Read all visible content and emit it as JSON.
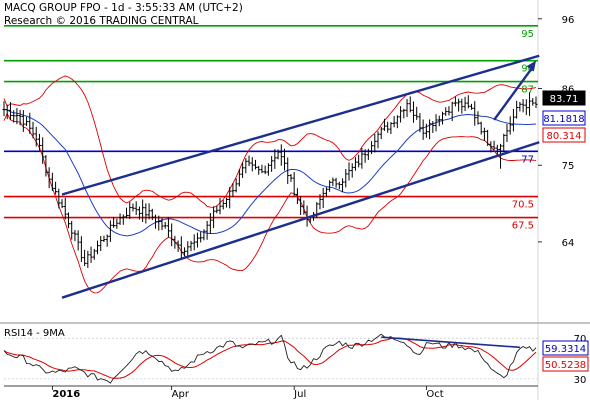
{
  "header": {
    "line1": "MACQ GROUP FPO - 1d - 3:55:33 AM (UTC+2)",
    "line2": "Research © 2016 TRADING CENTRAL"
  },
  "colors": {
    "price": "#000000",
    "channel": "#1c2f8c",
    "support_resistance_blue": "#0000cc",
    "target_green": "#00a000",
    "support_red": "#dd0000",
    "bollinger": "#dd0000",
    "moving_average": "#1c3cc8",
    "rsi": "#222222",
    "rsi_ma": "#dd0000",
    "box_black": "#000000",
    "box_blue": "#0000cc",
    "box_red": "#dd0000"
  },
  "chart_data": [
    {
      "type": "candlestick",
      "title": "MACQ GROUP FPO - 1d",
      "y_ticks": [
        "96",
        "86",
        "75",
        "64"
      ],
      "x_ticks": [
        "2016",
        "Apr",
        "Jul",
        "Oct"
      ],
      "ylim": [
        52.8,
        98.7
      ],
      "levels": [
        {
          "value": 95,
          "label": "95",
          "color": "#00a000"
        },
        {
          "value": 90,
          "label": "90",
          "color": "#00a000"
        },
        {
          "value": 87,
          "label": "87",
          "color": "#00a000"
        },
        {
          "value": 77,
          "label": "77",
          "color": "#0000cc"
        },
        {
          "value": 70.5,
          "label": "70.5",
          "color": "#dd0000"
        },
        {
          "value": 67.5,
          "label": "67.5",
          "color": "#dd0000"
        }
      ],
      "value_boxes": [
        {
          "value": 83.71,
          "label": "83.71",
          "style": "black"
        },
        {
          "value": 81.1818,
          "label": "81.1818",
          "style": "blue"
        },
        {
          "value": 80.314,
          "label": "80.314",
          "style": "red"
        }
      ],
      "channel": {
        "upper": [
          [
            18,
            70.8
          ],
          [
            166,
            90.7
          ]
        ],
        "lower": [
          [
            18,
            56.0
          ],
          [
            166,
            78.3
          ]
        ]
      },
      "arrow": {
        "from": [
          152,
          81.5
        ],
        "to": [
          165,
          90.0
        ]
      },
      "anchors": [
        [
          0,
          83.0
        ],
        [
          5,
          82.0
        ],
        [
          10,
          79.0
        ],
        [
          14,
          73.0
        ],
        [
          20,
          67.0
        ],
        [
          25,
          61.0
        ],
        [
          30,
          64.0
        ],
        [
          35,
          67.0
        ],
        [
          40,
          69.0
        ],
        [
          45,
          68.0
        ],
        [
          50,
          66.0
        ],
        [
          55,
          63.0
        ],
        [
          60,
          64.0
        ],
        [
          65,
          68.0
        ],
        [
          70,
          71.0
        ],
        [
          75,
          75.0
        ],
        [
          80,
          74.0
        ],
        [
          85,
          77.0
        ],
        [
          87,
          75.0
        ],
        [
          92,
          69.0
        ],
        [
          95,
          67.0
        ],
        [
          100,
          72.0
        ],
        [
          105,
          73.0
        ],
        [
          110,
          75.5
        ],
        [
          115,
          79.0
        ],
        [
          120,
          81.0
        ],
        [
          125,
          84.0
        ],
        [
          130,
          80.0
        ],
        [
          135,
          82.0
        ],
        [
          140,
          84.0
        ],
        [
          145,
          83.0
        ],
        [
          150,
          78.5
        ],
        [
          153,
          77.5
        ],
        [
          156,
          80.0
        ],
        [
          160,
          83.71
        ]
      ],
      "spikes": [
        {
          "index": 154,
          "low": 74.5
        }
      ]
    },
    {
      "type": "line",
      "title": "RSI14 - 9MA",
      "series": [
        {
          "name": "RSI14",
          "value": 59.3314,
          "label": "59.3314",
          "style": "blue"
        },
        {
          "name": "9MA",
          "value": 50.5238,
          "label": "50.5238",
          "style": "red"
        }
      ],
      "y_ticks": [
        "70",
        "30"
      ],
      "ylim": [
        23,
        82
      ],
      "trendline": [
        [
          117,
          71.0
        ],
        [
          160,
          61.0
        ]
      ],
      "anchors": [
        [
          0,
          56
        ],
        [
          6,
          50
        ],
        [
          12,
          38
        ],
        [
          16,
          36
        ],
        [
          22,
          40
        ],
        [
          28,
          32
        ],
        [
          33,
          28
        ],
        [
          38,
          45
        ],
        [
          42,
          58
        ],
        [
          46,
          55
        ],
        [
          50,
          44
        ],
        [
          54,
          36
        ],
        [
          58,
          46
        ],
        [
          62,
          56
        ],
        [
          66,
          60
        ],
        [
          70,
          66
        ],
        [
          74,
          60
        ],
        [
          78,
          64
        ],
        [
          82,
          66
        ],
        [
          86,
          70
        ],
        [
          88,
          52
        ],
        [
          92,
          38
        ],
        [
          96,
          48
        ],
        [
          100,
          60
        ],
        [
          104,
          66
        ],
        [
          108,
          62
        ],
        [
          112,
          66
        ],
        [
          116,
          72
        ],
        [
          120,
          70
        ],
        [
          124,
          68
        ],
        [
          128,
          54
        ],
        [
          132,
          66
        ],
        [
          136,
          62
        ],
        [
          140,
          64
        ],
        [
          144,
          60
        ],
        [
          148,
          54
        ],
        [
          152,
          36
        ],
        [
          155,
          30
        ],
        [
          158,
          48
        ],
        [
          160,
          59
        ]
      ]
    }
  ]
}
